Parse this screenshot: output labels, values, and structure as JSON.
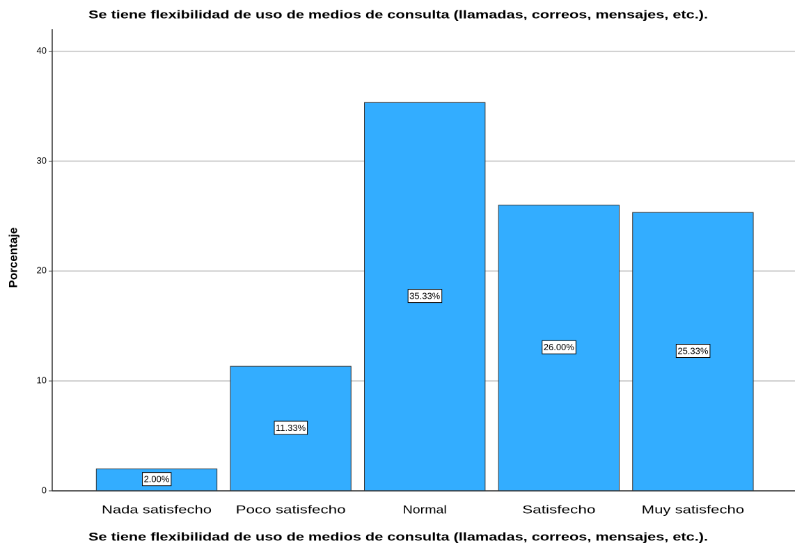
{
  "chart_data": {
    "type": "bar",
    "title": "Se tiene flexibilidad de uso de medios de consulta (llamadas, correos, mensajes, etc.).",
    "x_label": "Se tiene flexibilidad de uso de medios de consulta (llamadas, correos, mensajes, etc.).",
    "y_label": "Porcentaje",
    "categories": [
      "Nada satisfecho",
      "Poco satisfecho",
      "Normal",
      "Satisfecho",
      "Muy satisfecho"
    ],
    "values": [
      2,
      11.33,
      35.33,
      26,
      25.33
    ],
    "value_labels": [
      "2.00%",
      "11.33%",
      "35.33%",
      "26.00%",
      "25.33%"
    ],
    "color": "#33adff",
    "ylim": [
      0,
      42
    ],
    "yticks": [
      0,
      10,
      20,
      30,
      40
    ],
    "grid": true
  }
}
